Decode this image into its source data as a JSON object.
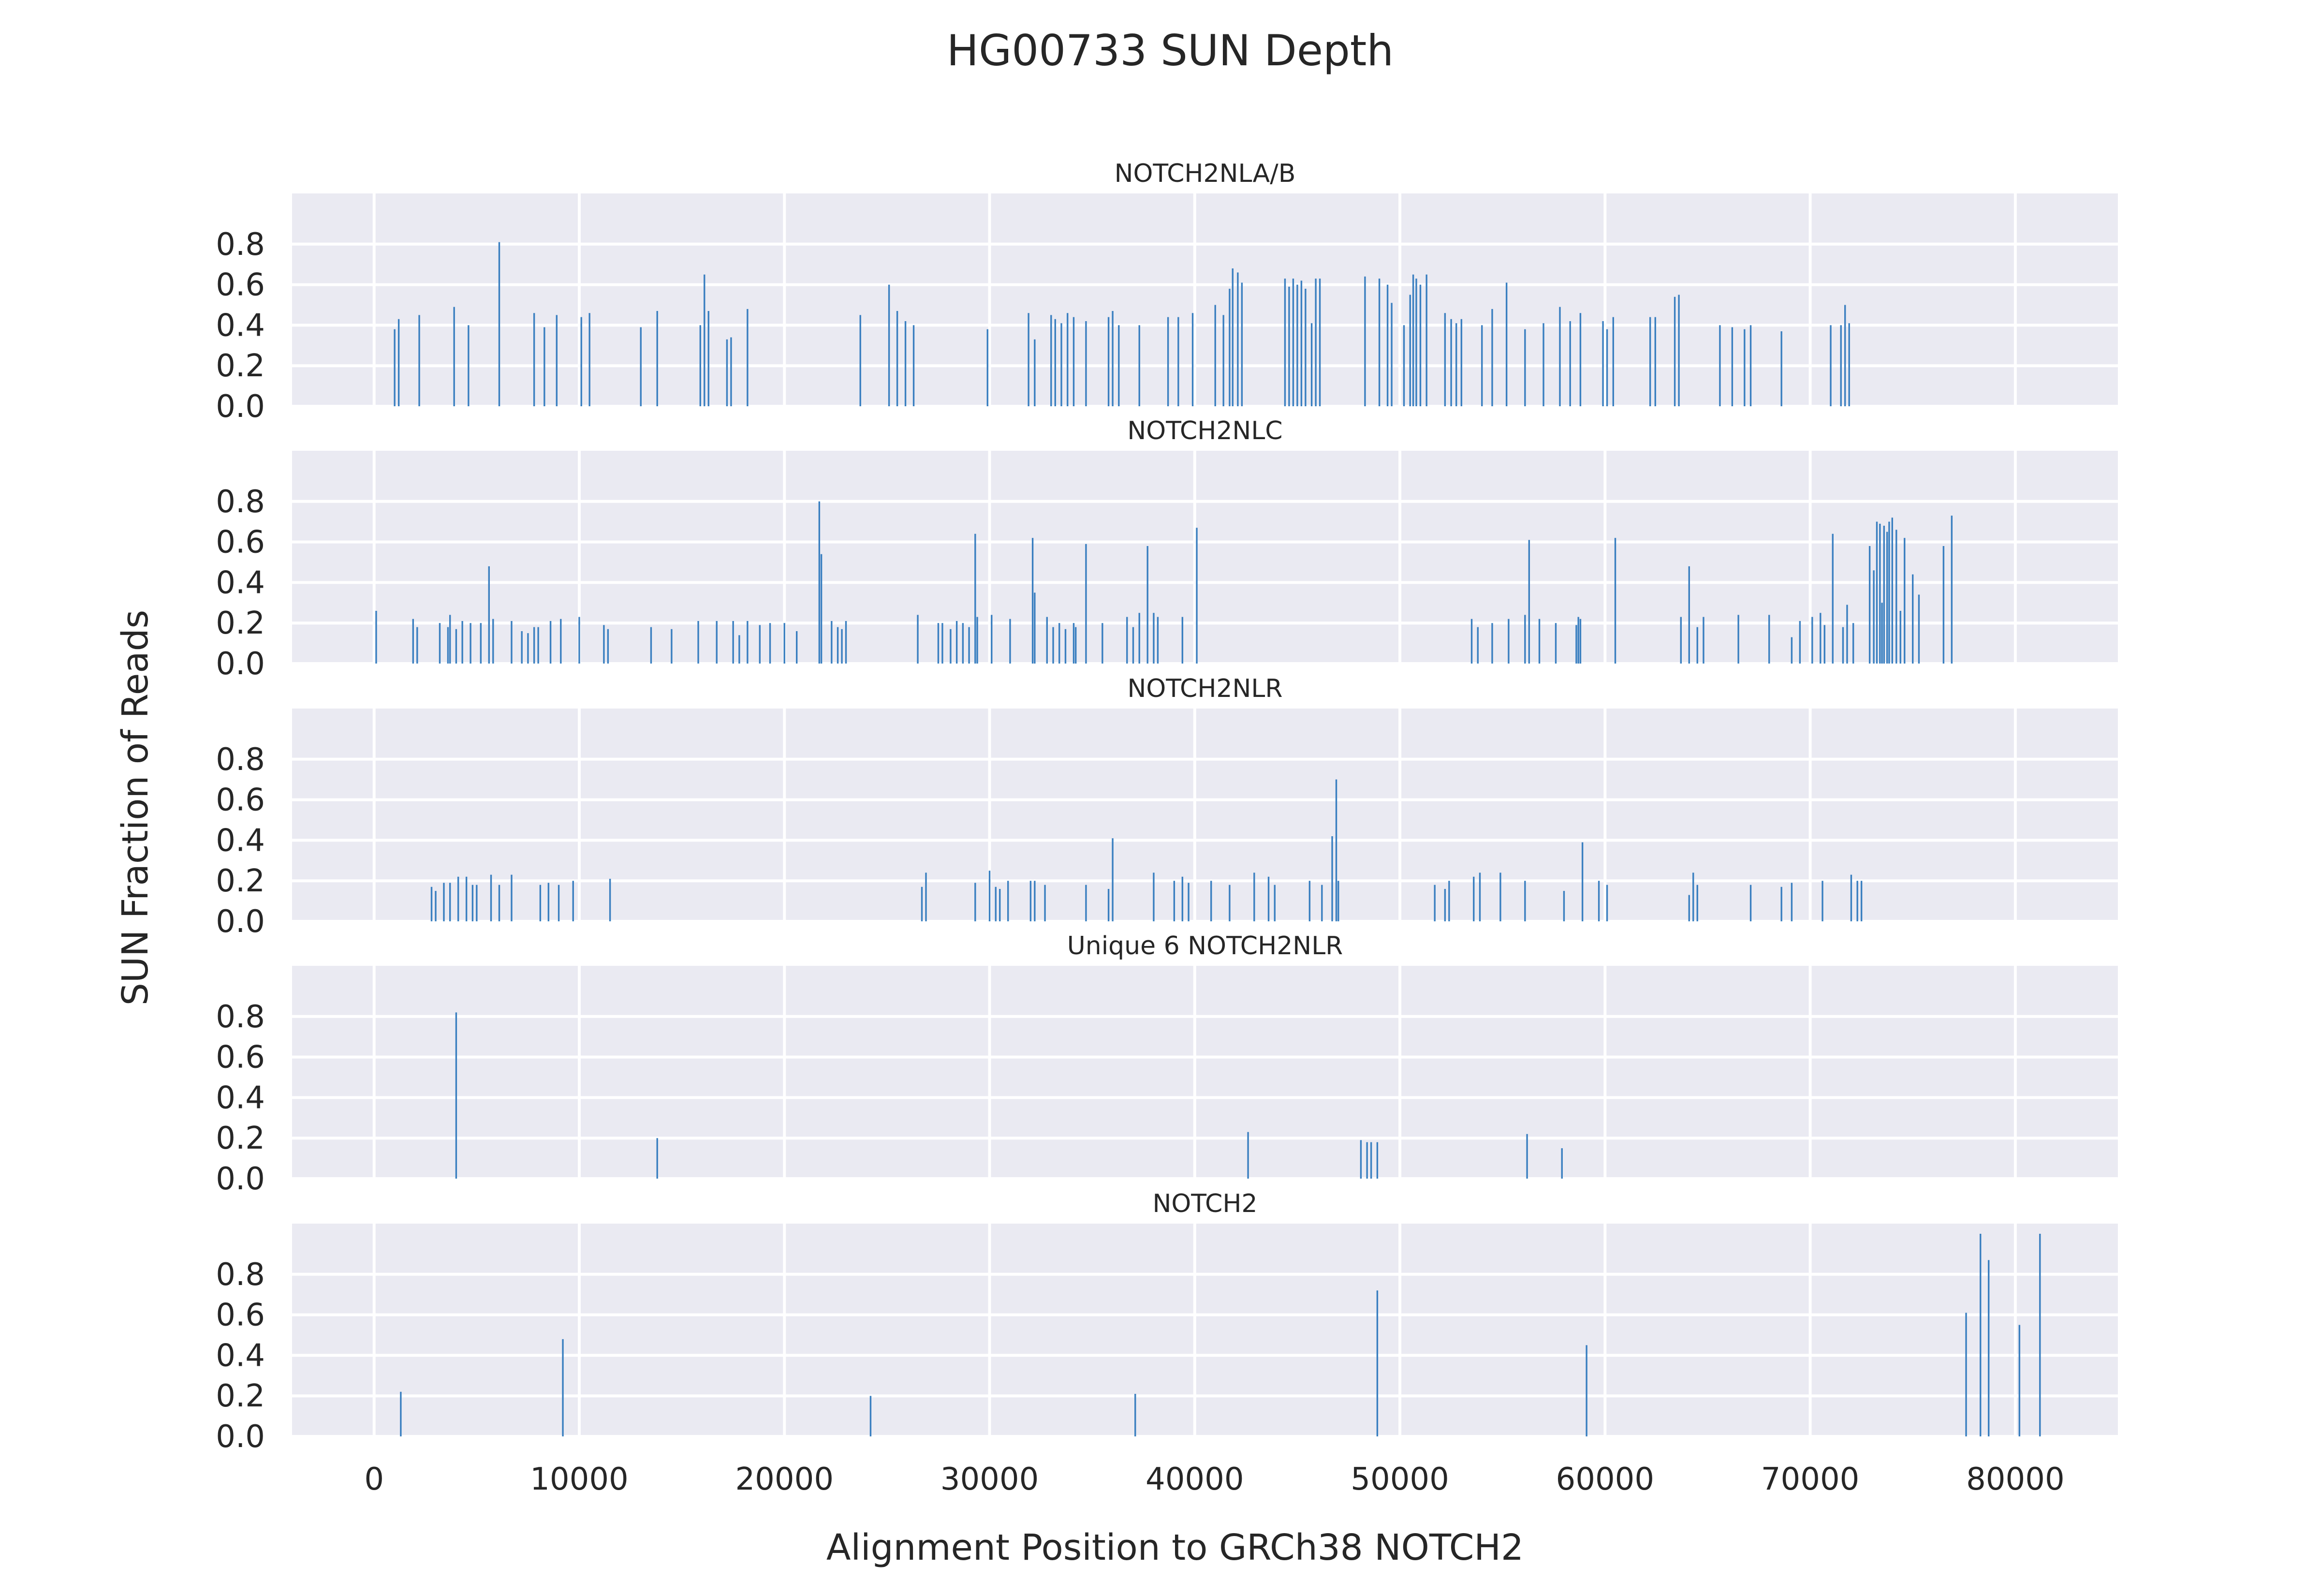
{
  "chart_data": {
    "type": "bar",
    "title": "HG00733 SUN Depth",
    "xlabel": "Alignment Position to GRCh38 NOTCH2",
    "ylabel": "SUN Fraction of Reads",
    "xlim": [
      -4000,
      85000
    ],
    "ylim": [
      0,
      1.05
    ],
    "x_ticks": [
      0,
      10000,
      20000,
      30000,
      40000,
      50000,
      60000,
      70000,
      80000
    ],
    "y_ticks": [
      0.0,
      0.2,
      0.4,
      0.6,
      0.8
    ],
    "y_tick_labels": [
      "0.0",
      "0.2",
      "0.4",
      "0.6",
      "0.8"
    ],
    "grid": true,
    "shared_x": true,
    "panels": [
      {
        "title": "NOTCH2NLA/B",
        "points": [
          [
            1000,
            0.38
          ],
          [
            1200,
            0.43
          ],
          [
            2200,
            0.45
          ],
          [
            3900,
            0.49
          ],
          [
            4600,
            0.4
          ],
          [
            6100,
            0.81
          ],
          [
            7800,
            0.46
          ],
          [
            8300,
            0.39
          ],
          [
            8900,
            0.45
          ],
          [
            10100,
            0.44
          ],
          [
            10500,
            0.46
          ],
          [
            13000,
            0.39
          ],
          [
            13800,
            0.47
          ],
          [
            15900,
            0.4
          ],
          [
            16100,
            0.65
          ],
          [
            16300,
            0.47
          ],
          [
            17200,
            0.33
          ],
          [
            17400,
            0.34
          ],
          [
            18200,
            0.48
          ],
          [
            23700,
            0.45
          ],
          [
            25100,
            0.6
          ],
          [
            25500,
            0.47
          ],
          [
            25900,
            0.42
          ],
          [
            26300,
            0.4
          ],
          [
            29900,
            0.38
          ],
          [
            31900,
            0.46
          ],
          [
            32200,
            0.33
          ],
          [
            33000,
            0.45
          ],
          [
            33200,
            0.43
          ],
          [
            33500,
            0.41
          ],
          [
            33800,
            0.46
          ],
          [
            34100,
            0.44
          ],
          [
            34700,
            0.42
          ],
          [
            35800,
            0.44
          ],
          [
            36000,
            0.47
          ],
          [
            36300,
            0.4
          ],
          [
            37300,
            0.4
          ],
          [
            38700,
            0.44
          ],
          [
            39200,
            0.44
          ],
          [
            39900,
            0.46
          ],
          [
            41000,
            0.5
          ],
          [
            41400,
            0.45
          ],
          [
            41700,
            0.58
          ],
          [
            41850,
            0.68
          ],
          [
            42100,
            0.66
          ],
          [
            42300,
            0.61
          ],
          [
            44400,
            0.63
          ],
          [
            44600,
            0.59
          ],
          [
            44800,
            0.63
          ],
          [
            45000,
            0.6
          ],
          [
            45200,
            0.62
          ],
          [
            45400,
            0.58
          ],
          [
            45700,
            0.41
          ],
          [
            45900,
            0.63
          ],
          [
            46100,
            0.63
          ],
          [
            48300,
            0.64
          ],
          [
            49000,
            0.63
          ],
          [
            49400,
            0.6
          ],
          [
            49600,
            0.51
          ],
          [
            50200,
            0.4
          ],
          [
            50500,
            0.55
          ],
          [
            50650,
            0.65
          ],
          [
            50800,
            0.63
          ],
          [
            51000,
            0.6
          ],
          [
            51300,
            0.65
          ],
          [
            52200,
            0.46
          ],
          [
            52500,
            0.43
          ],
          [
            52750,
            0.41
          ],
          [
            53000,
            0.43
          ],
          [
            54000,
            0.4
          ],
          [
            54500,
            0.48
          ],
          [
            55200,
            0.61
          ],
          [
            56100,
            0.38
          ],
          [
            57000,
            0.41
          ],
          [
            57800,
            0.49
          ],
          [
            58300,
            0.42
          ],
          [
            58800,
            0.46
          ],
          [
            59900,
            0.42
          ],
          [
            60100,
            0.38
          ],
          [
            60400,
            0.44
          ],
          [
            62200,
            0.44
          ],
          [
            62450,
            0.44
          ],
          [
            63400,
            0.54
          ],
          [
            63600,
            0.55
          ],
          [
            65600,
            0.4
          ],
          [
            66200,
            0.39
          ],
          [
            66800,
            0.38
          ],
          [
            67100,
            0.4
          ],
          [
            68600,
            0.37
          ],
          [
            71000,
            0.4
          ],
          [
            71500,
            0.4
          ],
          [
            71700,
            0.5
          ],
          [
            71900,
            0.41
          ]
        ]
      },
      {
        "title": "NOTCH2NLC",
        "points": [
          [
            100,
            0.26
          ],
          [
            1900,
            0.22
          ],
          [
            2100,
            0.18
          ],
          [
            3200,
            0.2
          ],
          [
            3600,
            0.18
          ],
          [
            3700,
            0.24
          ],
          [
            4000,
            0.17
          ],
          [
            4300,
            0.21
          ],
          [
            4700,
            0.2
          ],
          [
            5200,
            0.2
          ],
          [
            5600,
            0.48
          ],
          [
            5800,
            0.22
          ],
          [
            6700,
            0.21
          ],
          [
            7200,
            0.16
          ],
          [
            7500,
            0.15
          ],
          [
            7800,
            0.18
          ],
          [
            8000,
            0.18
          ],
          [
            8600,
            0.21
          ],
          [
            9100,
            0.22
          ],
          [
            10000,
            0.23
          ],
          [
            11200,
            0.19
          ],
          [
            11400,
            0.17
          ],
          [
            13500,
            0.18
          ],
          [
            14500,
            0.17
          ],
          [
            15800,
            0.21
          ],
          [
            16700,
            0.21
          ],
          [
            17500,
            0.21
          ],
          [
            17800,
            0.14
          ],
          [
            18200,
            0.21
          ],
          [
            18800,
            0.19
          ],
          [
            19300,
            0.2
          ],
          [
            20000,
            0.2
          ],
          [
            20600,
            0.16
          ],
          [
            21700,
            0.8
          ],
          [
            21800,
            0.54
          ],
          [
            22300,
            0.21
          ],
          [
            22600,
            0.18
          ],
          [
            22800,
            0.17
          ],
          [
            23000,
            0.21
          ],
          [
            26500,
            0.24
          ],
          [
            27500,
            0.2
          ],
          [
            27700,
            0.2
          ],
          [
            28100,
            0.17
          ],
          [
            28400,
            0.21
          ],
          [
            28700,
            0.2
          ],
          [
            29000,
            0.18
          ],
          [
            29300,
            0.64
          ],
          [
            29400,
            0.23
          ],
          [
            30100,
            0.24
          ],
          [
            31000,
            0.22
          ],
          [
            32100,
            0.62
          ],
          [
            32200,
            0.35
          ],
          [
            32800,
            0.23
          ],
          [
            33100,
            0.18
          ],
          [
            33400,
            0.2
          ],
          [
            33700,
            0.17
          ],
          [
            34100,
            0.2
          ],
          [
            34200,
            0.18
          ],
          [
            34700,
            0.59
          ],
          [
            35500,
            0.2
          ],
          [
            36700,
            0.23
          ],
          [
            37000,
            0.18
          ],
          [
            37300,
            0.25
          ],
          [
            37700,
            0.58
          ],
          [
            38000,
            0.25
          ],
          [
            38200,
            0.23
          ],
          [
            39400,
            0.23
          ],
          [
            40100,
            0.67
          ],
          [
            53500,
            0.22
          ],
          [
            53800,
            0.18
          ],
          [
            54500,
            0.2
          ],
          [
            55300,
            0.22
          ],
          [
            56100,
            0.24
          ],
          [
            56300,
            0.61
          ],
          [
            56800,
            0.22
          ],
          [
            57600,
            0.2
          ],
          [
            58600,
            0.19
          ],
          [
            58700,
            0.23
          ],
          [
            58800,
            0.22
          ],
          [
            60500,
            0.62
          ],
          [
            63700,
            0.23
          ],
          [
            64100,
            0.48
          ],
          [
            64500,
            0.18
          ],
          [
            64800,
            0.23
          ],
          [
            66500,
            0.24
          ],
          [
            68000,
            0.24
          ],
          [
            69100,
            0.13
          ],
          [
            69500,
            0.21
          ],
          [
            70100,
            0.23
          ],
          [
            70500,
            0.25
          ],
          [
            70700,
            0.19
          ],
          [
            71100,
            0.64
          ],
          [
            71600,
            0.18
          ],
          [
            71800,
            0.29
          ],
          [
            72100,
            0.2
          ],
          [
            72900,
            0.58
          ],
          [
            73100,
            0.46
          ],
          [
            73250,
            0.7
          ],
          [
            73400,
            0.69
          ],
          [
            73500,
            0.3
          ],
          [
            73600,
            0.68
          ],
          [
            73750,
            0.65
          ],
          [
            73850,
            0.7
          ],
          [
            74000,
            0.72
          ],
          [
            74200,
            0.66
          ],
          [
            74400,
            0.26
          ],
          [
            74600,
            0.62
          ],
          [
            75000,
            0.44
          ],
          [
            75300,
            0.34
          ],
          [
            76500,
            0.58
          ],
          [
            76900,
            0.73
          ]
        ]
      },
      {
        "title": "NOTCH2NLR",
        "points": [
          [
            2800,
            0.17
          ],
          [
            3000,
            0.15
          ],
          [
            3400,
            0.19
          ],
          [
            3700,
            0.19
          ],
          [
            4100,
            0.22
          ],
          [
            4500,
            0.22
          ],
          [
            4800,
            0.18
          ],
          [
            5000,
            0.18
          ],
          [
            5700,
            0.23
          ],
          [
            6100,
            0.18
          ],
          [
            6700,
            0.23
          ],
          [
            8100,
            0.18
          ],
          [
            8500,
            0.19
          ],
          [
            9000,
            0.18
          ],
          [
            9700,
            0.2
          ],
          [
            11500,
            0.21
          ],
          [
            26700,
            0.17
          ],
          [
            26900,
            0.24
          ],
          [
            29300,
            0.19
          ],
          [
            30000,
            0.25
          ],
          [
            30300,
            0.17
          ],
          [
            30500,
            0.16
          ],
          [
            30900,
            0.2
          ],
          [
            32000,
            0.2
          ],
          [
            32200,
            0.2
          ],
          [
            32700,
            0.18
          ],
          [
            34700,
            0.18
          ],
          [
            35800,
            0.16
          ],
          [
            36000,
            0.41
          ],
          [
            38000,
            0.24
          ],
          [
            39000,
            0.2
          ],
          [
            39400,
            0.22
          ],
          [
            39700,
            0.19
          ],
          [
            40800,
            0.2
          ],
          [
            41700,
            0.18
          ],
          [
            42900,
            0.24
          ],
          [
            43600,
            0.22
          ],
          [
            43900,
            0.18
          ],
          [
            45600,
            0.2
          ],
          [
            46200,
            0.18
          ],
          [
            46700,
            0.42
          ],
          [
            46900,
            0.7
          ],
          [
            47000,
            0.2
          ],
          [
            51700,
            0.18
          ],
          [
            52200,
            0.16
          ],
          [
            52400,
            0.2
          ],
          [
            53600,
            0.22
          ],
          [
            53900,
            0.24
          ],
          [
            54900,
            0.24
          ],
          [
            56100,
            0.2
          ],
          [
            58000,
            0.15
          ],
          [
            58900,
            0.39
          ],
          [
            59700,
            0.2
          ],
          [
            60100,
            0.18
          ],
          [
            64100,
            0.13
          ],
          [
            64300,
            0.24
          ],
          [
            64500,
            0.18
          ],
          [
            67100,
            0.18
          ],
          [
            68600,
            0.17
          ],
          [
            69100,
            0.19
          ],
          [
            70600,
            0.2
          ],
          [
            72000,
            0.23
          ],
          [
            72300,
            0.2
          ],
          [
            72500,
            0.2
          ]
        ]
      },
      {
        "title": "Unique 6 NOTCH2NLR",
        "points": [
          [
            4000,
            0.82
          ],
          [
            13800,
            0.2
          ],
          [
            42600,
            0.23
          ],
          [
            48100,
            0.19
          ],
          [
            48400,
            0.18
          ],
          [
            48600,
            0.18
          ],
          [
            48900,
            0.18
          ],
          [
            56200,
            0.22
          ],
          [
            57900,
            0.15
          ]
        ]
      },
      {
        "title": "NOTCH2",
        "points": [
          [
            1300,
            0.22
          ],
          [
            9200,
            0.48
          ],
          [
            24200,
            0.2
          ],
          [
            37100,
            0.21
          ],
          [
            48900,
            0.72
          ],
          [
            59100,
            0.45
          ],
          [
            77600,
            0.61
          ],
          [
            78300,
            1.0
          ],
          [
            78700,
            0.87
          ],
          [
            80200,
            0.55
          ],
          [
            81200,
            1.0
          ]
        ]
      }
    ]
  }
}
